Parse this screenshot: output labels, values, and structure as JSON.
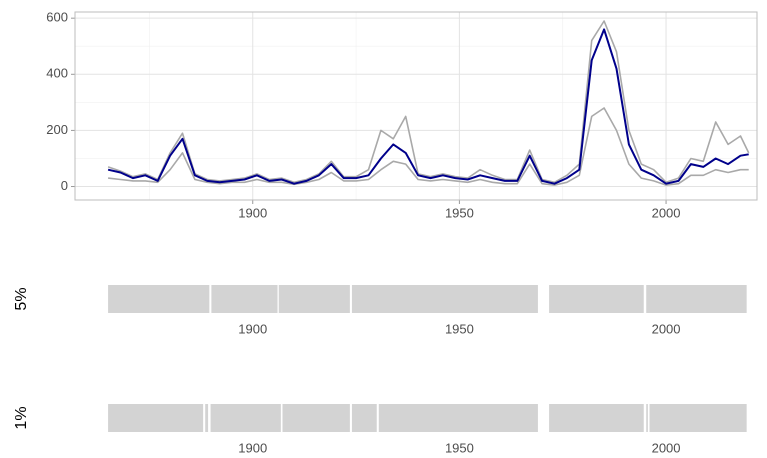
{
  "chart_data": [
    {
      "type": "line",
      "x": [
        1865,
        1868,
        1871,
        1874,
        1877,
        1880,
        1883,
        1886,
        1889,
        1892,
        1895,
        1898,
        1901,
        1904,
        1907,
        1910,
        1913,
        1916,
        1919,
        1922,
        1925,
        1928,
        1931,
        1934,
        1937,
        1940,
        1943,
        1946,
        1949,
        1952,
        1955,
        1958,
        1961,
        1964,
        1967,
        1970,
        1973,
        1976,
        1979,
        1982,
        1985,
        1988,
        1991,
        1994,
        1997,
        2000,
        2003,
        2006,
        2009,
        2012,
        2015,
        2018,
        2020
      ],
      "series": [
        {
          "color": "#a9a9a9",
          "values": [
            30,
            25,
            20,
            20,
            15,
            60,
            120,
            25,
            15,
            10,
            15,
            15,
            25,
            15,
            15,
            8,
            15,
            25,
            50,
            20,
            20,
            25,
            60,
            90,
            80,
            25,
            20,
            25,
            20,
            15,
            25,
            15,
            10,
            10,
            80,
            10,
            5,
            15,
            40,
            250,
            280,
            200,
            80,
            30,
            20,
            5,
            10,
            40,
            40,
            60,
            50,
            60,
            60
          ]
        },
        {
          "color": "#a9a9a9",
          "values": [
            70,
            55,
            35,
            45,
            25,
            120,
            190,
            45,
            25,
            20,
            25,
            30,
            45,
            25,
            30,
            15,
            25,
            45,
            90,
            35,
            35,
            60,
            200,
            170,
            250,
            45,
            35,
            45,
            35,
            30,
            60,
            40,
            25,
            25,
            130,
            25,
            15,
            40,
            80,
            520,
            590,
            480,
            200,
            80,
            60,
            15,
            30,
            100,
            90,
            230,
            150,
            180,
            120
          ]
        },
        {
          "color": "#00008b",
          "values": [
            60,
            50,
            30,
            40,
            20,
            110,
            170,
            40,
            20,
            15,
            20,
            25,
            40,
            20,
            25,
            10,
            20,
            40,
            80,
            30,
            30,
            40,
            100,
            150,
            120,
            40,
            30,
            40,
            30,
            25,
            40,
            30,
            20,
            20,
            110,
            20,
            10,
            30,
            60,
            450,
            560,
            420,
            150,
            60,
            40,
            10,
            20,
            80,
            70,
            100,
            80,
            110,
            115
          ]
        }
      ],
      "xlim": [
        1857,
        2022
      ],
      "xticks": [
        1900,
        1950,
        2000
      ],
      "xminor": [
        1875,
        1925,
        1975
      ],
      "ylim": [
        -48,
        622
      ],
      "yticks": [
        0,
        200,
        400,
        600
      ],
      "yminor": [
        100,
        300,
        500
      ],
      "grid": true
    },
    {
      "type": "timeline",
      "ylabel": "5%",
      "color": "#d3d3d3",
      "segments": [
        [
          1865,
          1889.5
        ],
        [
          1890,
          1906
        ],
        [
          1906.3,
          1923.5
        ],
        [
          1924,
          1969
        ],
        [
          1971.7,
          1994.6
        ],
        [
          1995.2,
          2019.5
        ]
      ],
      "xlim": [
        1857,
        2022
      ],
      "xticks": [
        1900,
        1950,
        2000
      ]
    },
    {
      "type": "timeline",
      "ylabel": "1%",
      "color": "#d3d3d3",
      "segments": [
        [
          1865,
          1888
        ],
        [
          1888.5,
          1889.2
        ],
        [
          1889.8,
          1906.8
        ],
        [
          1907.2,
          1923.5
        ],
        [
          1924,
          1930
        ],
        [
          1930.5,
          1969
        ],
        [
          1971.7,
          1994.6
        ],
        [
          1995.2,
          1995.6
        ],
        [
          1996,
          2019.5
        ]
      ],
      "xlim": [
        1857,
        2022
      ],
      "xticks": [
        1900,
        1950,
        2000
      ]
    }
  ]
}
